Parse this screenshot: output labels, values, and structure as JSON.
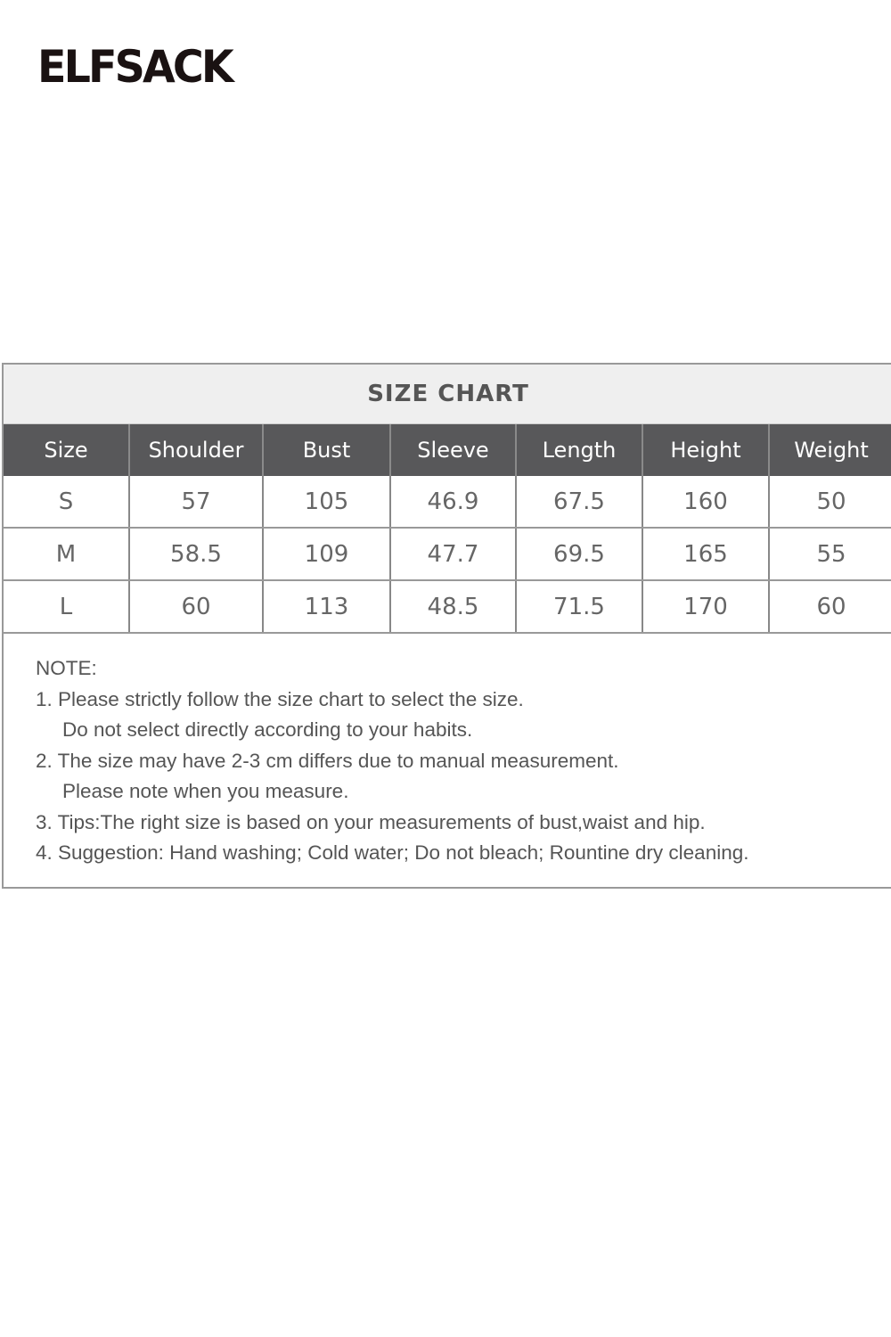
{
  "brand": {
    "logo_text": "ELFSACK"
  },
  "size_chart": {
    "title": "SIZE CHART",
    "columns": [
      "Size",
      "Shoulder",
      "Bust",
      "Sleeve",
      "Length",
      "Height",
      "Weight"
    ],
    "rows": [
      [
        "S",
        "57",
        "105",
        "46.9",
        "67.5",
        "160",
        "50"
      ],
      [
        "M",
        "58.5",
        "109",
        "47.7",
        "69.5",
        "165",
        "55"
      ],
      [
        "L",
        "60",
        "113",
        "48.5",
        "71.5",
        "170",
        "60"
      ]
    ]
  },
  "notes": {
    "heading": "NOTE:",
    "lines": [
      "1. Please strictly follow the size chart to select the size.",
      "Do not select directly according to your habits.",
      "2. The size may have 2-3 cm differs due to manual measurement.",
      "Please note when you measure.",
      "3. Tips:The right size is based on your measurements of bust,waist and hip.",
      "4. Suggestion: Hand washing; Cold water; Do not bleach; Rountine dry cleaning."
    ]
  }
}
